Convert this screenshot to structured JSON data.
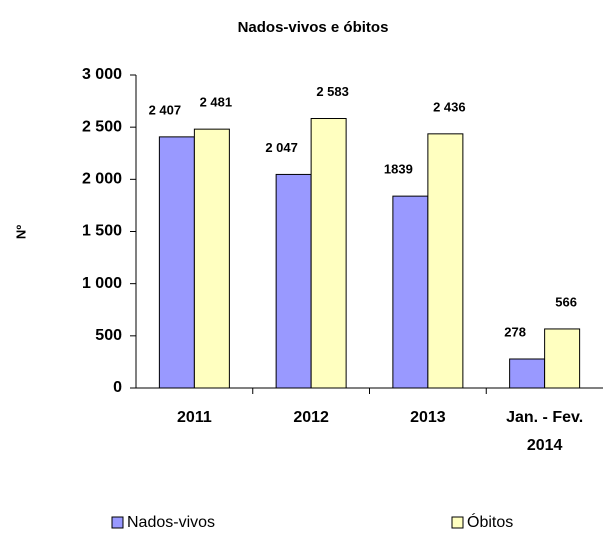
{
  "chart_data": {
    "type": "bar",
    "title": "Nados-vivos e óbitos",
    "y_label": "Nº",
    "categories": [
      "2011",
      "2012",
      "2013",
      "Jan. - Fev. 2014"
    ],
    "series": [
      {
        "name": "Nados-vivos",
        "color": "#9999ff",
        "values": [
          2407,
          2047,
          1839,
          278
        ],
        "value_labels": [
          "2 407",
          "2 047",
          "1839",
          "278"
        ]
      },
      {
        "name": "Óbitos",
        "color": "#ffffc0",
        "values": [
          2481,
          2583,
          2436,
          566
        ],
        "value_labels": [
          "2 481",
          "2 583",
          "2 436",
          "566"
        ]
      }
    ],
    "ylim": [
      0,
      3000
    ],
    "yticks": [
      0,
      500,
      {
        "value": 1000,
        "label": "1 000"
      },
      {
        "value": 1500,
        "label": "1 500"
      },
      {
        "value": 2000,
        "label": "2 000"
      },
      {
        "value": 2500,
        "label": "2 500"
      },
      {
        "value": 3000,
        "label": "3 000"
      }
    ],
    "grid": false
  }
}
